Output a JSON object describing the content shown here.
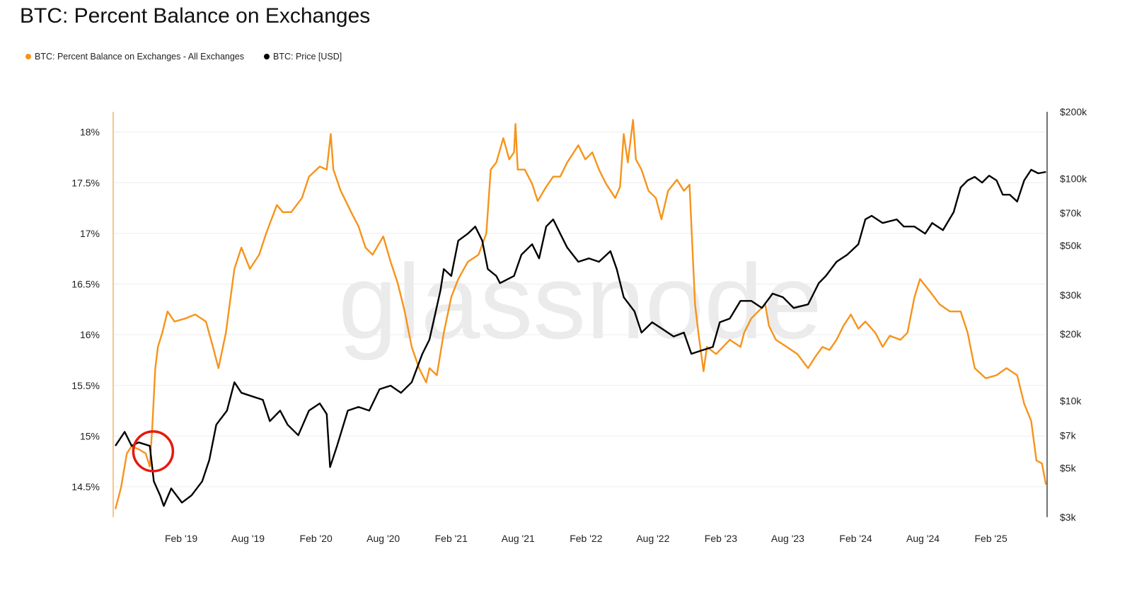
{
  "chart_data": {
    "type": "line",
    "title": "BTC: Percent Balance on Exchanges",
    "watermark": "glassnode",
    "legend_position": "top-left",
    "grid": true,
    "x_axis": {
      "type": "date",
      "range": [
        "2018-08-01",
        "2025-07-03"
      ],
      "tick_labels": [
        {
          "date": "2019-02-01",
          "label": "Feb '19"
        },
        {
          "date": "2019-08-01",
          "label": "Aug '19"
        },
        {
          "date": "2020-02-01",
          "label": "Feb '20"
        },
        {
          "date": "2020-08-01",
          "label": "Aug '20"
        },
        {
          "date": "2021-02-01",
          "label": "Feb '21"
        },
        {
          "date": "2021-08-01",
          "label": "Aug '21"
        },
        {
          "date": "2022-02-01",
          "label": "Feb '22"
        },
        {
          "date": "2022-08-01",
          "label": "Aug '22"
        },
        {
          "date": "2023-02-01",
          "label": "Feb '23"
        },
        {
          "date": "2023-08-01",
          "label": "Aug '23"
        },
        {
          "date": "2024-02-01",
          "label": "Feb '24"
        },
        {
          "date": "2024-08-01",
          "label": "Aug '24"
        },
        {
          "date": "2025-02-01",
          "label": "Feb '25"
        }
      ]
    },
    "y_left": {
      "scale": "linear",
      "unit": "%",
      "range": [
        14.2,
        18.2
      ],
      "ticks": [
        14.5,
        15,
        15.5,
        16,
        16.5,
        17,
        17.5,
        18
      ],
      "tick_labels": [
        "14.5%",
        "15%",
        "15.5%",
        "16%",
        "16.5%",
        "17%",
        "17.5%",
        "18%"
      ]
    },
    "y_right": {
      "scale": "log",
      "range": [
        3000,
        200000
      ],
      "ticks": [
        3000,
        5000,
        7000,
        10000,
        20000,
        30000,
        50000,
        70000,
        100000,
        200000
      ],
      "tick_labels": [
        "$3k",
        "$5k",
        "$7k",
        "$10k",
        "$20k",
        "$30k",
        "$50k",
        "$70k",
        "$100k",
        "$200k"
      ]
    },
    "series": [
      {
        "name": "BTC: Percent Balance on Exchanges - All Exchanges",
        "axis": "left",
        "color": "#f7931a",
        "points": [
          [
            "2018-08-07",
            14.28
          ],
          [
            "2018-08-22",
            14.49
          ],
          [
            "2018-09-07",
            14.83
          ],
          [
            "2018-09-20",
            14.9
          ],
          [
            "2018-10-09",
            14.87
          ],
          [
            "2018-10-28",
            14.83
          ],
          [
            "2018-11-08",
            14.7
          ],
          [
            "2018-11-15",
            15.1
          ],
          [
            "2018-11-23",
            15.67
          ],
          [
            "2018-11-30",
            15.88
          ],
          [
            "2018-12-12",
            16.02
          ],
          [
            "2018-12-26",
            16.23
          ],
          [
            "2019-01-14",
            16.13
          ],
          [
            "2019-02-12",
            16.16
          ],
          [
            "2019-03-11",
            16.2
          ],
          [
            "2019-04-09",
            16.13
          ],
          [
            "2019-04-28",
            15.88
          ],
          [
            "2019-05-13",
            15.67
          ],
          [
            "2019-06-02",
            16.02
          ],
          [
            "2019-06-25",
            16.65
          ],
          [
            "2019-07-14",
            16.86
          ],
          [
            "2019-08-06",
            16.65
          ],
          [
            "2019-08-31",
            16.79
          ],
          [
            "2019-09-19",
            17.0
          ],
          [
            "2019-10-18",
            17.28
          ],
          [
            "2019-11-03",
            17.21
          ],
          [
            "2019-11-26",
            17.21
          ],
          [
            "2019-12-25",
            17.35
          ],
          [
            "2020-01-13",
            17.56
          ],
          [
            "2020-02-11",
            17.66
          ],
          [
            "2020-03-01",
            17.63
          ],
          [
            "2020-03-12",
            17.98
          ],
          [
            "2020-03-19",
            17.63
          ],
          [
            "2020-04-08",
            17.42
          ],
          [
            "2020-05-06",
            17.21
          ],
          [
            "2020-05-26",
            17.07
          ],
          [
            "2020-06-14",
            16.86
          ],
          [
            "2020-07-03",
            16.79
          ],
          [
            "2020-08-01",
            16.97
          ],
          [
            "2020-08-21",
            16.72
          ],
          [
            "2020-09-09",
            16.51
          ],
          [
            "2020-09-28",
            16.23
          ],
          [
            "2020-10-17",
            15.88
          ],
          [
            "2020-11-06",
            15.67
          ],
          [
            "2020-11-25",
            15.53
          ],
          [
            "2020-12-04",
            15.67
          ],
          [
            "2020-12-24",
            15.6
          ],
          [
            "2021-01-12",
            16.02
          ],
          [
            "2021-02-01",
            16.37
          ],
          [
            "2021-02-20",
            16.55
          ],
          [
            "2021-03-18",
            16.72
          ],
          [
            "2021-04-16",
            16.79
          ],
          [
            "2021-05-07",
            17.0
          ],
          [
            "2021-05-19",
            17.63
          ],
          [
            "2021-06-03",
            17.7
          ],
          [
            "2021-06-22",
            17.94
          ],
          [
            "2021-07-08",
            17.73
          ],
          [
            "2021-07-21",
            17.8
          ],
          [
            "2021-07-25",
            18.08
          ],
          [
            "2021-07-31",
            17.63
          ],
          [
            "2021-08-19",
            17.63
          ],
          [
            "2021-09-08",
            17.49
          ],
          [
            "2021-09-23",
            17.32
          ],
          [
            "2021-10-16",
            17.46
          ],
          [
            "2021-11-04",
            17.56
          ],
          [
            "2021-11-23",
            17.56
          ],
          [
            "2021-12-12",
            17.7
          ],
          [
            "2022-01-11",
            17.87
          ],
          [
            "2022-01-30",
            17.73
          ],
          [
            "2022-02-18",
            17.8
          ],
          [
            "2022-03-08",
            17.63
          ],
          [
            "2022-03-27",
            17.49
          ],
          [
            "2022-04-21",
            17.35
          ],
          [
            "2022-05-04",
            17.46
          ],
          [
            "2022-05-14",
            17.98
          ],
          [
            "2022-05-25",
            17.7
          ],
          [
            "2022-06-08",
            18.12
          ],
          [
            "2022-06-16",
            17.73
          ],
          [
            "2022-07-01",
            17.63
          ],
          [
            "2022-07-20",
            17.42
          ],
          [
            "2022-08-09",
            17.35
          ],
          [
            "2022-08-24",
            17.14
          ],
          [
            "2022-09-11",
            17.42
          ],
          [
            "2022-10-05",
            17.53
          ],
          [
            "2022-10-24",
            17.42
          ],
          [
            "2022-11-08",
            17.48
          ],
          [
            "2022-11-15",
            16.93
          ],
          [
            "2022-11-23",
            16.3
          ],
          [
            "2022-12-02",
            16.02
          ],
          [
            "2022-12-16",
            15.64
          ],
          [
            "2022-12-25",
            15.88
          ],
          [
            "2023-01-19",
            15.81
          ],
          [
            "2023-02-25",
            15.95
          ],
          [
            "2023-03-26",
            15.88
          ],
          [
            "2023-04-05",
            16.02
          ],
          [
            "2023-04-24",
            16.16
          ],
          [
            "2023-05-13",
            16.23
          ],
          [
            "2023-06-01",
            16.3
          ],
          [
            "2023-06-11",
            16.09
          ],
          [
            "2023-06-30",
            15.95
          ],
          [
            "2023-07-29",
            15.88
          ],
          [
            "2023-08-27",
            15.81
          ],
          [
            "2023-09-25",
            15.67
          ],
          [
            "2023-10-14",
            15.78
          ],
          [
            "2023-11-03",
            15.88
          ],
          [
            "2023-11-22",
            15.85
          ],
          [
            "2023-12-11",
            15.95
          ],
          [
            "2023-12-30",
            16.09
          ],
          [
            "2024-01-19",
            16.2
          ],
          [
            "2024-02-08",
            16.06
          ],
          [
            "2024-02-27",
            16.13
          ],
          [
            "2024-03-25",
            16.02
          ],
          [
            "2024-04-14",
            15.88
          ],
          [
            "2024-05-03",
            15.99
          ],
          [
            "2024-06-01",
            15.95
          ],
          [
            "2024-06-20",
            16.02
          ],
          [
            "2024-07-09",
            16.37
          ],
          [
            "2024-07-24",
            16.55
          ],
          [
            "2024-08-17",
            16.44
          ],
          [
            "2024-09-15",
            16.3
          ],
          [
            "2024-10-13",
            16.23
          ],
          [
            "2024-11-11",
            16.23
          ],
          [
            "2024-11-30",
            16.02
          ],
          [
            "2024-12-19",
            15.67
          ],
          [
            "2025-01-18",
            15.57
          ],
          [
            "2025-02-16",
            15.6
          ],
          [
            "2025-03-15",
            15.67
          ],
          [
            "2025-04-13",
            15.6
          ],
          [
            "2025-05-02",
            15.32
          ],
          [
            "2025-05-21",
            15.15
          ],
          [
            "2025-06-04",
            14.76
          ],
          [
            "2025-06-19",
            14.73
          ],
          [
            "2025-06-30",
            14.52
          ]
        ]
      },
      {
        "name": "BTC: Price [USD]",
        "axis": "right",
        "color": "#000000",
        "points": [
          [
            "2018-08-07",
            6280
          ],
          [
            "2018-09-01",
            7260
          ],
          [
            "2018-09-20",
            6280
          ],
          [
            "2018-10-09",
            6510
          ],
          [
            "2018-11-08",
            6280
          ],
          [
            "2018-11-19",
            4350
          ],
          [
            "2018-12-06",
            3760
          ],
          [
            "2018-12-16",
            3370
          ],
          [
            "2019-01-05",
            4040
          ],
          [
            "2019-02-03",
            3490
          ],
          [
            "2019-03-01",
            3760
          ],
          [
            "2019-03-30",
            4350
          ],
          [
            "2019-04-18",
            5420
          ],
          [
            "2019-05-07",
            7820
          ],
          [
            "2019-06-05",
            9050
          ],
          [
            "2019-06-25",
            12140
          ],
          [
            "2019-07-14",
            10880
          ],
          [
            "2019-08-12",
            10490
          ],
          [
            "2019-09-10",
            10120
          ],
          [
            "2019-09-29",
            8110
          ],
          [
            "2019-10-27",
            9050
          ],
          [
            "2019-11-16",
            7820
          ],
          [
            "2019-12-15",
            7010
          ],
          [
            "2020-01-13",
            9050
          ],
          [
            "2020-02-11",
            9750
          ],
          [
            "2020-03-01",
            8730
          ],
          [
            "2020-03-10",
            5040
          ],
          [
            "2020-03-29",
            6280
          ],
          [
            "2020-04-27",
            9050
          ],
          [
            "2020-05-26",
            9400
          ],
          [
            "2020-06-24",
            9050
          ],
          [
            "2020-07-22",
            11300
          ],
          [
            "2020-08-21",
            11720
          ],
          [
            "2020-09-18",
            10880
          ],
          [
            "2020-10-17",
            12140
          ],
          [
            "2020-11-15",
            16300
          ],
          [
            "2020-12-04",
            18880
          ],
          [
            "2021-01-03",
            31500
          ],
          [
            "2021-01-12",
            39200
          ],
          [
            "2021-02-01",
            36500
          ],
          [
            "2021-02-20",
            52600
          ],
          [
            "2021-03-18",
            56600
          ],
          [
            "2021-04-07",
            60900
          ],
          [
            "2021-04-26",
            52600
          ],
          [
            "2021-05-11",
            39200
          ],
          [
            "2021-06-03",
            36500
          ],
          [
            "2021-06-13",
            33900
          ],
          [
            "2021-07-21",
            36500
          ],
          [
            "2021-08-10",
            45500
          ],
          [
            "2021-09-08",
            50700
          ],
          [
            "2021-09-27",
            43800
          ],
          [
            "2021-10-16",
            60900
          ],
          [
            "2021-11-04",
            65600
          ],
          [
            "2021-11-23",
            56600
          ],
          [
            "2021-12-12",
            49000
          ],
          [
            "2022-01-11",
            42300
          ],
          [
            "2022-02-09",
            43800
          ],
          [
            "2022-03-08",
            42300
          ],
          [
            "2022-04-08",
            47200
          ],
          [
            "2022-04-25",
            39200
          ],
          [
            "2022-05-14",
            29300
          ],
          [
            "2022-06-12",
            25300
          ],
          [
            "2022-07-01",
            20300
          ],
          [
            "2022-07-30",
            22600
          ],
          [
            "2022-08-28",
            21000
          ],
          [
            "2022-09-26",
            19500
          ],
          [
            "2022-10-24",
            20300
          ],
          [
            "2022-11-13",
            16300
          ],
          [
            "2022-12-12",
            16900
          ],
          [
            "2023-01-10",
            17500
          ],
          [
            "2023-01-29",
            22600
          ],
          [
            "2023-02-25",
            23500
          ],
          [
            "2023-03-26",
            28200
          ],
          [
            "2023-04-24",
            28200
          ],
          [
            "2023-05-23",
            26200
          ],
          [
            "2023-06-21",
            30400
          ],
          [
            "2023-07-19",
            29300
          ],
          [
            "2023-08-17",
            26200
          ],
          [
            "2023-09-25",
            27200
          ],
          [
            "2023-10-24",
            33900
          ],
          [
            "2023-11-12",
            36500
          ],
          [
            "2023-12-11",
            42300
          ],
          [
            "2024-01-09",
            45500
          ],
          [
            "2024-02-08",
            50700
          ],
          [
            "2024-02-27",
            65600
          ],
          [
            "2024-03-15",
            68100
          ],
          [
            "2024-04-14",
            63200
          ],
          [
            "2024-05-22",
            65600
          ],
          [
            "2024-06-10",
            60900
          ],
          [
            "2024-07-09",
            60900
          ],
          [
            "2024-08-07",
            56600
          ],
          [
            "2024-08-26",
            63200
          ],
          [
            "2024-09-24",
            58700
          ],
          [
            "2024-10-23",
            70700
          ],
          [
            "2024-11-11",
            91300
          ],
          [
            "2024-11-30",
            98200
          ],
          [
            "2024-12-19",
            101900
          ],
          [
            "2025-01-08",
            96000
          ],
          [
            "2025-01-27",
            103200
          ],
          [
            "2025-02-16",
            98200
          ],
          [
            "2025-03-05",
            84700
          ],
          [
            "2025-03-24",
            84700
          ],
          [
            "2025-04-13",
            78900
          ],
          [
            "2025-05-02",
            98200
          ],
          [
            "2025-05-21",
            109700
          ],
          [
            "2025-06-09",
            105700
          ],
          [
            "2025-06-30",
            107300
          ]
        ]
      }
    ],
    "annotations": [
      {
        "type": "circle",
        "date": "2018-11-17",
        "value": 14.85,
        "axis": "left",
        "color": "#e8190c"
      }
    ]
  }
}
